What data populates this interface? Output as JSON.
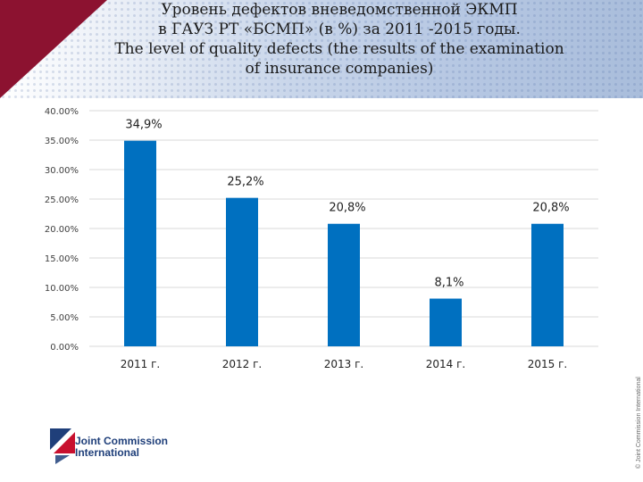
{
  "title": {
    "line1": "Уровень дефектов  вневедомственной ЭКМП",
    "line2": "в ГАУЗ РТ «БСМП» (в %) за 2011 -2015 годы.",
    "line3": "The level of quality defects (the results of the examination",
    "line4": "of insurance companies)"
  },
  "colors": {
    "bar": "#0070c0",
    "header_accent": "#8c1230",
    "logo_blue": "#1f3f7a",
    "logo_red": "#c8102e"
  },
  "chart_data": {
    "type": "bar",
    "categories": [
      "2011 г.",
      "2012 г.",
      "2013 г.",
      "2014 г.",
      "2015 г."
    ],
    "values": [
      34.9,
      25.2,
      20.8,
      8.1,
      20.8
    ],
    "data_labels": [
      "34,9%",
      "25,2%",
      "20,8%",
      "8,1%",
      "20,8%"
    ],
    "y_ticks": [
      "0.00%",
      "5.00%",
      "10.00%",
      "15.00%",
      "20.00%",
      "25.00%",
      "30.00%",
      "35.00%",
      "40.00%"
    ],
    "ylim": [
      0,
      40
    ],
    "grid": true,
    "legend": "none"
  },
  "logo": {
    "line1": "Joint Commission",
    "line2": "International"
  },
  "copyright": "© Joint Commission International"
}
